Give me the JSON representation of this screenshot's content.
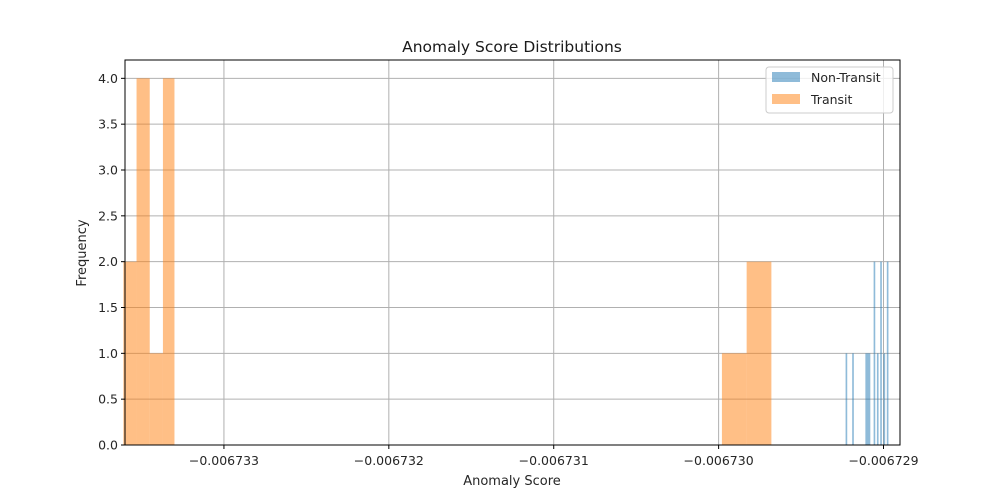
{
  "chart_data": {
    "type": "bar",
    "title": "Anomaly Score Distributions",
    "xlabel": "Anomaly Score",
    "ylabel": "Frequency",
    "xlim": [
      -0.0067336,
      -0.0067289
    ],
    "ylim": [
      0,
      4.2
    ],
    "xticks": [
      -0.006733,
      -0.006732,
      -0.006731,
      -0.00673,
      -0.006729
    ],
    "xtick_labels": [
      "−0.006733",
      "−0.006732",
      "−0.006731",
      "−0.006730",
      "−0.006729"
    ],
    "yticks": [
      0,
      0.5,
      1,
      1.5,
      2,
      2.5,
      3,
      3.5,
      4
    ],
    "ytick_labels": [
      "0.0",
      "0.5",
      "1.0",
      "1.5",
      "2.0",
      "2.5",
      "3.0",
      "3.5",
      "4.0"
    ],
    "grid": true,
    "legend_position": "top-right",
    "series": [
      {
        "name": "Non-Transit",
        "color": "#1f77b4",
        "alpha": 0.5,
        "bins": [
          {
            "x0": -0.00672923,
            "x1": -0.00672922,
            "count": 1
          },
          {
            "x0": -0.00672919,
            "x1": -0.00672918,
            "count": 1
          },
          {
            "x0": -0.00672911,
            "x1": -0.00672908,
            "count": 1
          },
          {
            "x0": -0.00672906,
            "x1": -0.00672905,
            "count": 2
          },
          {
            "x0": -0.00672904,
            "x1": -0.00672903,
            "count": 1
          },
          {
            "x0": -0.00672902,
            "x1": -0.00672901,
            "count": 2
          },
          {
            "x0": -0.006729,
            "x1": -0.00672899,
            "count": 1
          },
          {
            "x0": -0.00672898,
            "x1": -0.00672897,
            "count": 2
          }
        ]
      },
      {
        "name": "Transit",
        "color": "#ff7f0e",
        "alpha": 0.5,
        "bins": [
          {
            "x0": -0.00673361,
            "x1": -0.00673353,
            "count": 2
          },
          {
            "x0": -0.00673353,
            "x1": -0.00673345,
            "count": 4
          },
          {
            "x0": -0.00673345,
            "x1": -0.00673337,
            "count": 1
          },
          {
            "x0": -0.00673337,
            "x1": -0.0067333,
            "count": 4
          },
          {
            "x0": -0.00672998,
            "x1": -0.00672983,
            "count": 1
          },
          {
            "x0": -0.00672983,
            "x1": -0.00672968,
            "count": 2
          }
        ]
      }
    ]
  }
}
